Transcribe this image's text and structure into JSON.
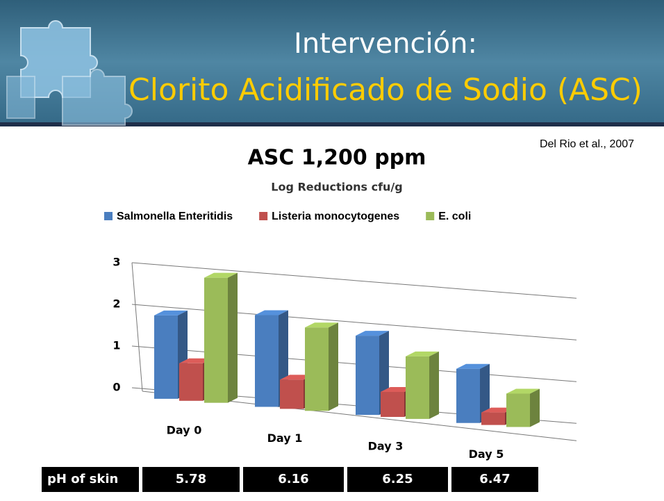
{
  "header": {
    "title": "Intervención:",
    "subtitle": "Clorito Acidificado de Sodio (ASC)"
  },
  "citation": "Del Rio et al., 2007",
  "chart_data": {
    "type": "bar3d",
    "title": "ASC 1,200 ppm",
    "subtitle": "Log Reductions cfu/g",
    "categories": [
      "Day 0",
      "Day 1",
      "Day 3",
      "Day 5"
    ],
    "series": [
      {
        "name": "Salmonella Enteritidis",
        "color": "#4a7ebf",
        "values": [
          2.0,
          2.2,
          1.9,
          1.3
        ]
      },
      {
        "name": "Listeria monocytogenes",
        "color": "#c0504d",
        "values": [
          0.9,
          0.7,
          0.6,
          0.3
        ]
      },
      {
        "name": "E. coli",
        "color": "#9bbb59",
        "values": [
          3.0,
          2.0,
          1.5,
          0.8
        ]
      }
    ],
    "ylim": [
      0,
      3
    ],
    "yticks": [
      0,
      1,
      2,
      3
    ],
    "grid": true
  },
  "table": {
    "rows": [
      [
        "pH of skin",
        "5.78",
        "6.16",
        "6.25",
        "6.47"
      ]
    ]
  }
}
